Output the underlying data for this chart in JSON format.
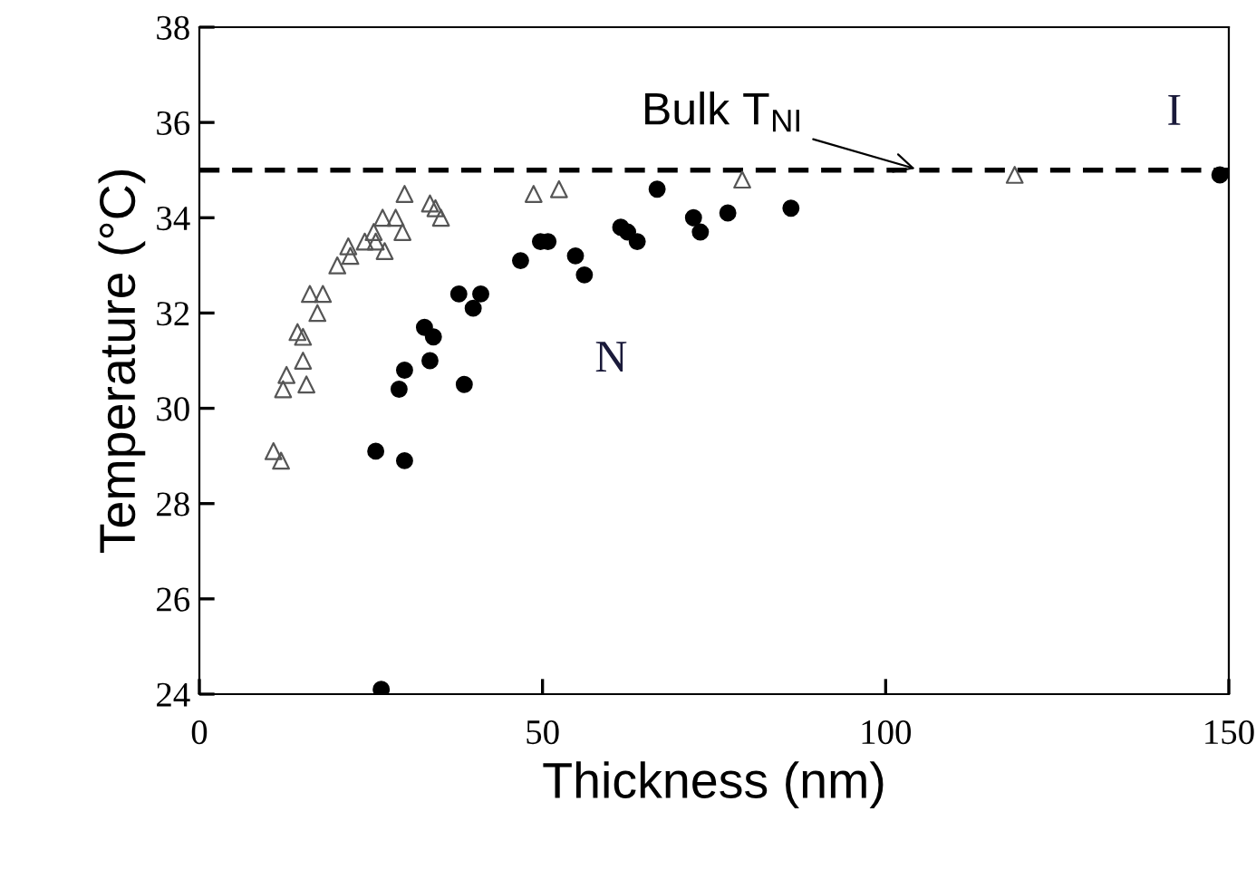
{
  "chart_data": {
    "type": "scatter",
    "xlabel": "Thickness (nm)",
    "ylabel": "Temperature (°C)",
    "xlim": [
      0,
      150
    ],
    "xticks": [
      0,
      50,
      100,
      150
    ],
    "ylim": [
      24,
      38
    ],
    "yticks": [
      24,
      26,
      28,
      30,
      32,
      34,
      36,
      38
    ],
    "grid": false,
    "series": [
      {
        "color": "#000000",
        "marker": "circle",
        "x": [
          26.5,
          25.7,
          29.9,
          29.1,
          29.9,
          33.6,
          38.6,
          32.8,
          34.1,
          37.8,
          41.0,
          39.9,
          46.8,
          49.7,
          50.8,
          54.8,
          56.1,
          61.4,
          62.4,
          63.8,
          66.7,
          72.0,
          73.0,
          77.0,
          86.2,
          148.7
        ],
        "values": [
          24.1,
          29.1,
          28.9,
          30.4,
          30.8,
          31.0,
          30.5,
          31.7,
          31.5,
          32.4,
          32.4,
          32.1,
          33.1,
          33.5,
          33.5,
          33.2,
          32.8,
          33.8,
          33.7,
          33.5,
          34.6,
          34.0,
          33.7,
          34.1,
          34.2,
          34.9
        ]
      },
      {
        "color": "#555555",
        "marker": "triangle",
        "x": [
          10.8,
          11.9,
          12.2,
          12.7,
          15.6,
          15.1,
          14.3,
          15.1,
          16.1,
          18.0,
          17.2,
          20.1,
          22.0,
          21.7,
          24.1,
          25.4,
          25.7,
          27.0,
          26.7,
          28.6,
          29.6,
          29.9,
          33.6,
          34.4,
          35.2,
          48.7,
          52.4,
          79.1,
          118.8
        ],
        "values": [
          29.1,
          28.9,
          30.4,
          30.7,
          30.5,
          31.0,
          31.6,
          31.5,
          32.4,
          32.4,
          32.0,
          33.0,
          33.2,
          33.4,
          33.5,
          33.7,
          33.5,
          33.3,
          34.0,
          34.0,
          33.7,
          34.5,
          34.3,
          34.2,
          34.0,
          34.5,
          34.6,
          34.8,
          34.9
        ]
      }
    ],
    "ref_lines": [
      {
        "axis": "y",
        "value": 35,
        "label": "Bulk T$_{NI}$",
        "color": "#000000",
        "line_style": "dashed"
      }
    ],
    "annotations": [
      "N",
      "I"
    ]
  }
}
